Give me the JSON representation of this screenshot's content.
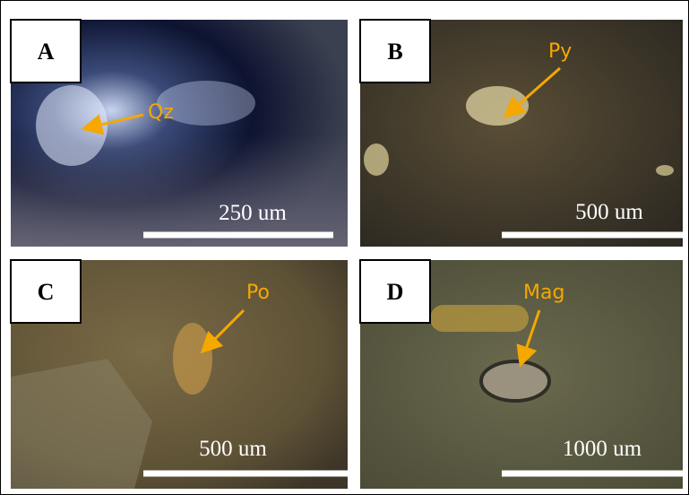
{
  "panels": [
    {
      "label": "A",
      "mineral": "Qz",
      "scale": "250 um"
    },
    {
      "label": "B",
      "mineral": "Py",
      "scale": "500 um"
    },
    {
      "label": "C",
      "mineral": "Po",
      "scale": "500 um"
    },
    {
      "label": "D",
      "mineral": "Mag",
      "scale": "1000 um"
    }
  ]
}
